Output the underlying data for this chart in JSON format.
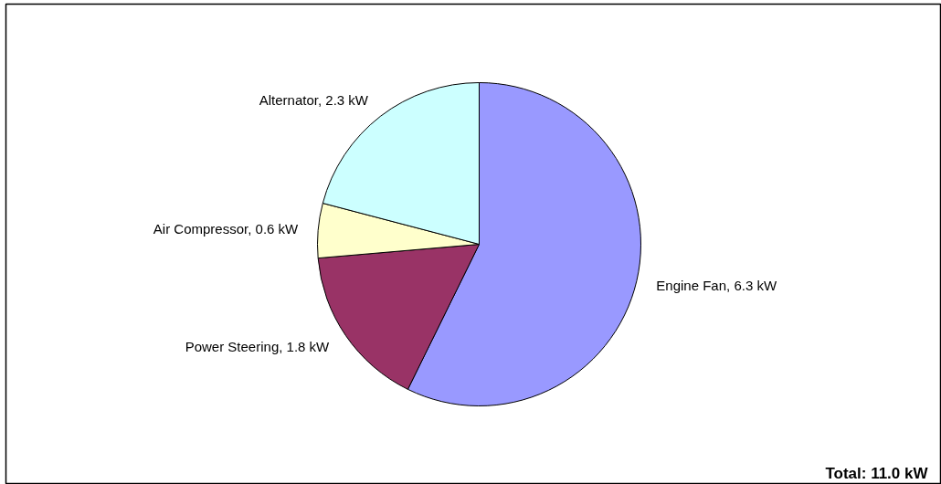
{
  "chart_data": {
    "type": "pie",
    "categories": [
      "Engine Fan",
      "Power Steering",
      "Air Compressor",
      "Alternator"
    ],
    "values": [
      6.3,
      1.8,
      0.6,
      2.3
    ],
    "colors": [
      "#9999ff",
      "#993366",
      "#ffffcc",
      "#ccffff"
    ],
    "value_labels": [
      "6.3 kW",
      "1.8 kW",
      "0.6 kW",
      "2.3 kW"
    ],
    "annotations": [
      "Total: 11.0 kW"
    ]
  }
}
